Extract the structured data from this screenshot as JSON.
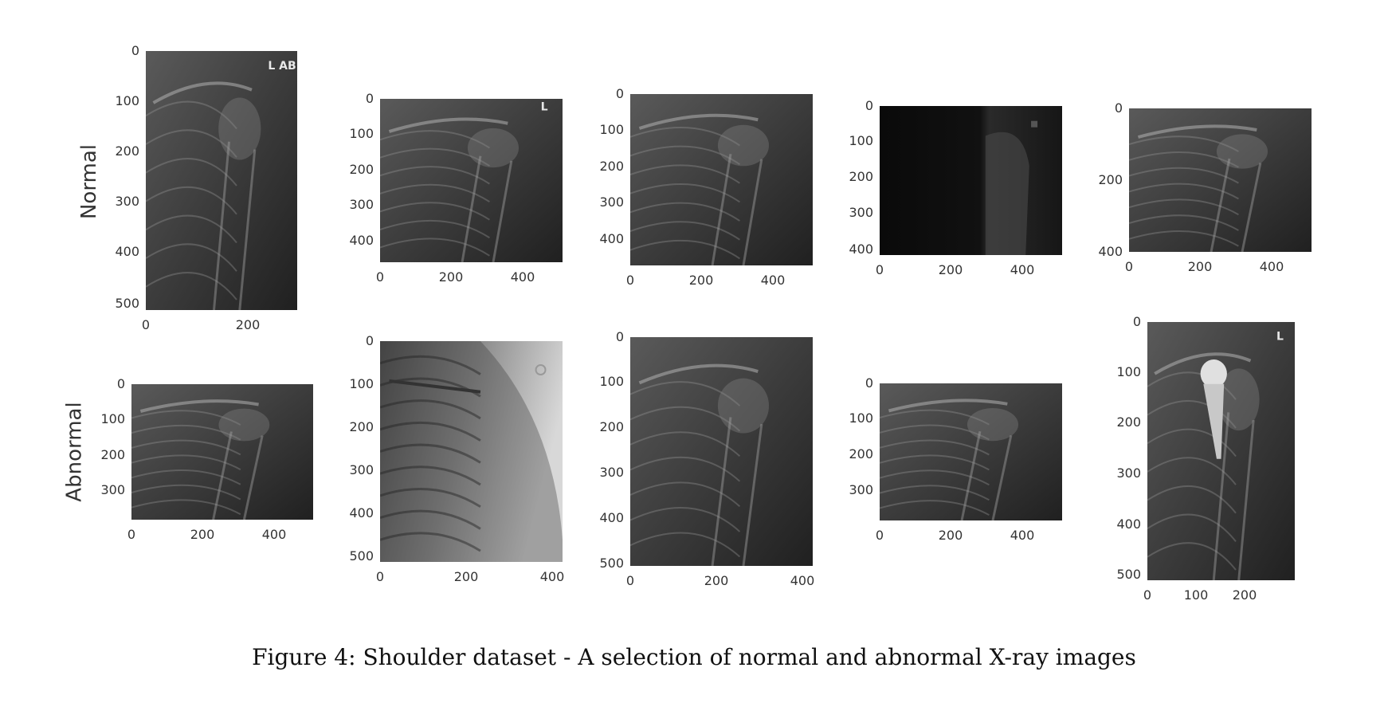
{
  "caption": "Figure 4: Shoulder dataset - A selection of normal and abnormal X-ray images",
  "row_labels": [
    "Normal",
    "Abnormal"
  ],
  "colors": {
    "tick_text": "#333333",
    "caption_text": "#111111"
  },
  "panels": [
    {
      "row": 0,
      "yticks": [
        "0",
        "100",
        "200",
        "300",
        "400",
        "500"
      ],
      "xticks": [
        "0",
        "200"
      ],
      "marker": "L AB",
      "tone": "dark"
    },
    {
      "row": 0,
      "yticks": [
        "0",
        "100",
        "200",
        "300",
        "400"
      ],
      "xticks": [
        "0",
        "200",
        "400"
      ],
      "marker": "L",
      "tone": "dark"
    },
    {
      "row": 0,
      "yticks": [
        "0",
        "100",
        "200",
        "300",
        "400"
      ],
      "xticks": [
        "0",
        "200",
        "400"
      ],
      "marker": "",
      "tone": "dark"
    },
    {
      "row": 0,
      "yticks": [
        "0",
        "100",
        "200",
        "300",
        "400"
      ],
      "xticks": [
        "0",
        "200",
        "400"
      ],
      "marker": "",
      "tone": "black"
    },
    {
      "row": 0,
      "yticks": [
        "0",
        "200",
        "400"
      ],
      "xticks": [
        "0",
        "200",
        "400"
      ],
      "marker": "",
      "tone": "dark"
    },
    {
      "row": 1,
      "yticks": [
        "0",
        "100",
        "200",
        "300"
      ],
      "xticks": [
        "0",
        "200",
        "400"
      ],
      "marker": "",
      "tone": "dark"
    },
    {
      "row": 1,
      "yticks": [
        "0",
        "100",
        "200",
        "300",
        "400",
        "500"
      ],
      "xticks": [
        "0",
        "200",
        "400"
      ],
      "marker": "",
      "tone": "light"
    },
    {
      "row": 1,
      "yticks": [
        "0",
        "100",
        "200",
        "300",
        "400",
        "500"
      ],
      "xticks": [
        "0",
        "200",
        "400"
      ],
      "marker": "",
      "tone": "dark"
    },
    {
      "row": 1,
      "yticks": [
        "0",
        "100",
        "200",
        "300"
      ],
      "xticks": [
        "0",
        "200",
        "400"
      ],
      "marker": "",
      "tone": "dark"
    },
    {
      "row": 1,
      "yticks": [
        "0",
        "100",
        "200",
        "300",
        "400",
        "500"
      ],
      "xticks": [
        "0",
        "100",
        "200"
      ],
      "marker": "L",
      "tone": "implant"
    }
  ]
}
